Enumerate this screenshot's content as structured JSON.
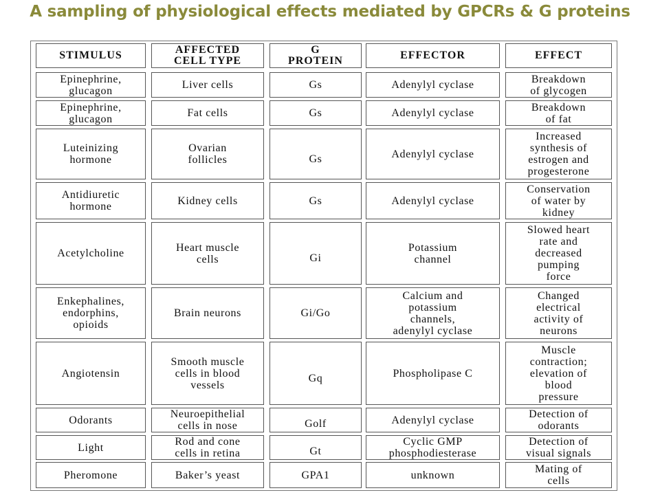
{
  "title": "A sampling of physiological effects mediated by GPCRs & G proteins",
  "headers": [
    "STIMULUS",
    "AFFECTED CELL TYPE",
    "G PROTEIN",
    "EFFECTOR",
    "EFFECT"
  ],
  "rows": [
    {
      "stimulus": "Epinephrine, glucagon",
      "cell": "Liver cells",
      "gprotein": "Gs",
      "effector": "Adenylyl cyclase",
      "effect": "Breakdown of glycogen"
    },
    {
      "stimulus": "Epinephrine, glucagon",
      "cell": "Fat cells",
      "gprotein": "Gs",
      "effector": "Adenylyl cyclase",
      "effect": "Breakdown of fat"
    },
    {
      "stimulus": "Luteinizing hormone",
      "cell": "Ovarian follicles",
      "gprotein": "Gs",
      "effector": "Adenylyl cyclase",
      "effect": "Increased synthesis of estrogen and progesterone"
    },
    {
      "stimulus": "Antidiuretic hormone",
      "cell": "Kidney cells",
      "gprotein": "Gs",
      "effector": "Adenylyl cyclase",
      "effect": "Conservation of water by kidney"
    },
    {
      "stimulus": "Acetylcholine",
      "cell": "Heart muscle cells",
      "gprotein": "Gi",
      "effector": "Potassium channel",
      "effect": "Slowed heart rate and decreased pumping force"
    },
    {
      "stimulus": "Enkephalines, endorphins, opioids",
      "cell": "Brain neurons",
      "gprotein": "Gi/Go",
      "effector": "Calcium and potassium channels, adenylyl cyclase",
      "effect": "Changed electrical activity of neurons"
    },
    {
      "stimulus": "Angiotensin",
      "cell": "Smooth muscle cells in blood vessels",
      "gprotein": "Gq",
      "effector": "Phospholipase C",
      "effect": "Muscle contraction; elevation of blood pressure"
    },
    {
      "stimulus": "Odorants",
      "cell": "Neuroepithelial cells in nose",
      "gprotein": "Golf",
      "effector": "Adenylyl cyclase",
      "effect": "Detection of odorants"
    },
    {
      "stimulus": "Light",
      "cell": "Rod and cone cells in retina",
      "gprotein": "Gt",
      "effector": "Cyclic GMP phosphodiesterase",
      "effect": "Detection of visual signals"
    },
    {
      "stimulus": "Pheromone",
      "cell": "Baker’s yeast",
      "gprotein": "GPA1",
      "effector": "unknown",
      "effect": "Mating of cells"
    }
  ]
}
